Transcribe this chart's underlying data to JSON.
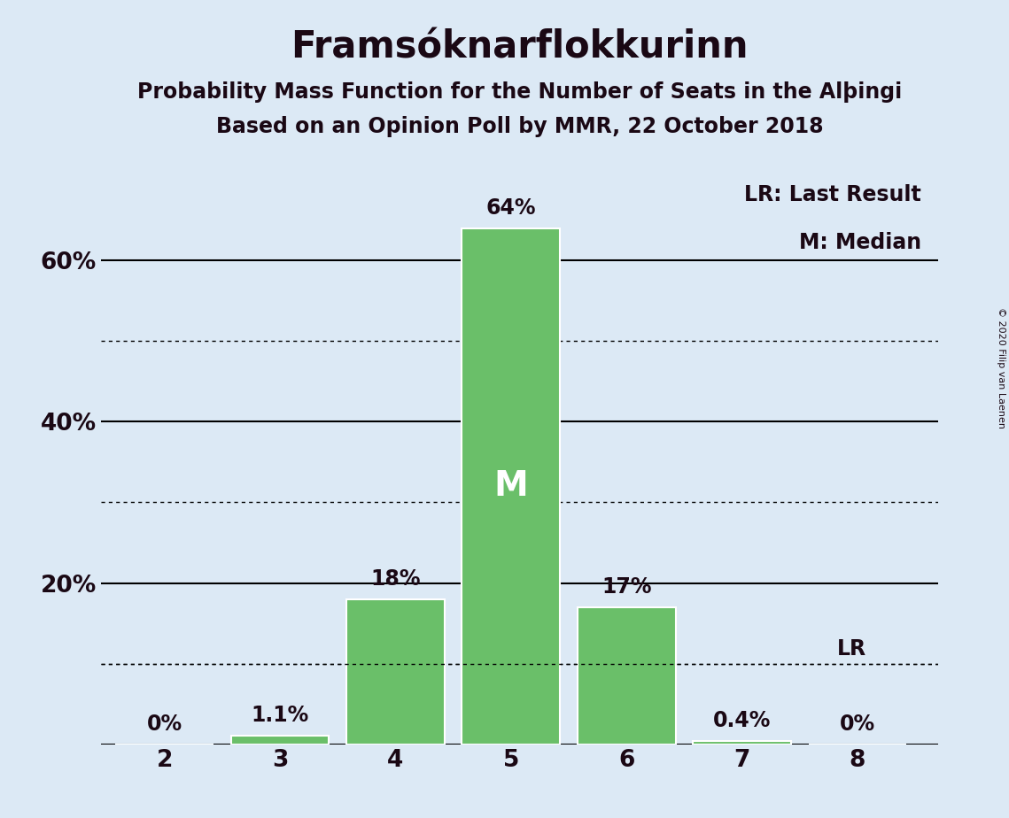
{
  "title": "Framsóknarflokkurinn",
  "subtitle1": "Probability Mass Function for the Number of Seats in the Alþingi",
  "subtitle2": "Based on an Opinion Poll by MMR, 22 October 2018",
  "copyright": "© 2020 Filip van Laenen",
  "seats": [
    2,
    3,
    4,
    5,
    6,
    7,
    8
  ],
  "probabilities": [
    0.0,
    1.1,
    18.0,
    64.0,
    17.0,
    0.4,
    0.0
  ],
  "bar_color": "#6abf69",
  "bar_edge_color": "#ffffff",
  "background_color": "#dce9f5",
  "median_seat": 5,
  "median_label": "M",
  "lr_value": 10.0,
  "lr_label": "LR",
  "legend_lr": "LR: Last Result",
  "legend_m": "M: Median",
  "solid_yticks": [
    0,
    20,
    40,
    60
  ],
  "dotted_yticks": [
    10,
    30,
    50
  ],
  "ylim": [
    0,
    72
  ],
  "title_fontsize": 30,
  "subtitle_fontsize": 17,
  "axis_fontsize": 19,
  "label_fontsize": 17,
  "median_fontsize": 28,
  "legend_fontsize": 17,
  "copyright_fontsize": 8,
  "text_color": "#1a0814"
}
